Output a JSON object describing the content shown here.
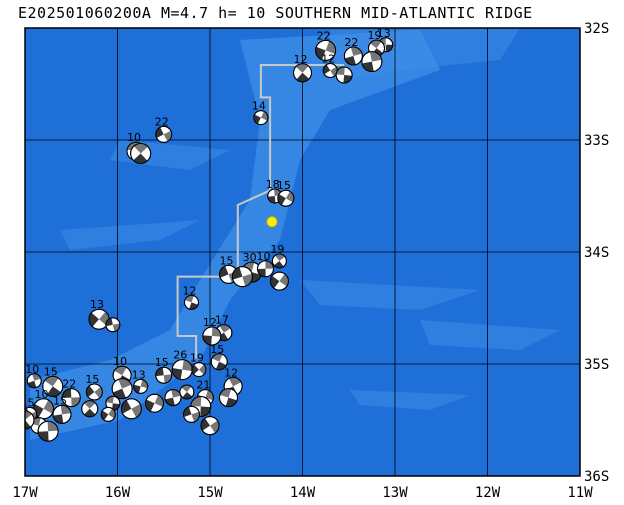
{
  "title": "E202501060200A  M=4.7  h= 10 SOUTHERN MID-ATLANTIC RIDGE",
  "lon_labels": [
    "17W",
    "16W",
    "15W",
    "14W",
    "13W",
    "12W",
    "11W"
  ],
  "lat_labels": [
    "32S",
    "33S",
    "34S",
    "35S",
    "36S"
  ],
  "extent": {
    "lon_min": -17,
    "lon_max": -11,
    "lat_min": -36,
    "lat_max": -32
  },
  "colors": {
    "ocean": "#1f6fd8",
    "shallow": "#3f8fe8",
    "ridge_line": "#c8c8c8",
    "event": "#ffee00"
  },
  "event": {
    "lon": -14.33,
    "lat": -33.73
  },
  "ridge": [
    {
      "lon": -13.55,
      "lat": -32.33
    },
    {
      "lon": -14.45,
      "lat": -32.33
    },
    {
      "lon": -14.45,
      "lat": -32.62
    },
    {
      "lon": -14.35,
      "lat": -32.62
    },
    {
      "lon": -14.35,
      "lat": -33.45
    },
    {
      "lon": -14.7,
      "lat": -33.58
    },
    {
      "lon": -14.7,
      "lat": -34.22
    },
    {
      "lon": -15.35,
      "lat": -34.22
    },
    {
      "lon": -15.35,
      "lat": -34.75
    },
    {
      "lon": -15.15,
      "lat": -34.75
    },
    {
      "lon": -15.15,
      "lat": -34.95
    }
  ],
  "mechanisms": [
    {
      "lon": -13.1,
      "lat": -32.15,
      "label": "13"
    },
    {
      "lon": -13.2,
      "lat": -32.18,
      "label": "19"
    },
    {
      "lon": -13.45,
      "lat": -32.25,
      "label": "22"
    },
    {
      "lon": -13.75,
      "lat": -32.2,
      "label": "22"
    },
    {
      "lon": -13.7,
      "lat": -32.38,
      "label": "12"
    },
    {
      "lon": -13.55,
      "lat": -32.42,
      "label": ""
    },
    {
      "lon": -14.0,
      "lat": -32.4,
      "label": "12"
    },
    {
      "lon": -13.25,
      "lat": -32.3,
      "label": ""
    },
    {
      "lon": -14.45,
      "lat": -32.8,
      "label": "14"
    },
    {
      "lon": -15.5,
      "lat": -32.95,
      "label": "22"
    },
    {
      "lon": -15.8,
      "lat": -33.1,
      "label": "10"
    },
    {
      "lon": -15.75,
      "lat": -33.12,
      "label": ""
    },
    {
      "lon": -14.3,
      "lat": -33.5,
      "label": "18"
    },
    {
      "lon": -14.18,
      "lat": -33.52,
      "label": "15"
    },
    {
      "lon": -14.8,
      "lat": -34.2,
      "label": "15"
    },
    {
      "lon": -14.55,
      "lat": -34.18,
      "label": "30"
    },
    {
      "lon": -14.25,
      "lat": -34.08,
      "label": "19"
    },
    {
      "lon": -14.4,
      "lat": -34.15,
      "label": "10"
    },
    {
      "lon": -14.25,
      "lat": -34.26,
      "label": ""
    },
    {
      "lon": -14.65,
      "lat": -34.22,
      "label": ""
    },
    {
      "lon": -15.2,
      "lat": -34.45,
      "label": "12"
    },
    {
      "lon": -14.85,
      "lat": -34.72,
      "label": "17"
    },
    {
      "lon": -14.98,
      "lat": -34.75,
      "label": "12"
    },
    {
      "lon": -16.2,
      "lat": -34.6,
      "label": "13"
    },
    {
      "lon": -16.05,
      "lat": -34.65,
      "label": ""
    },
    {
      "lon": -14.9,
      "lat": -34.98,
      "label": "15"
    },
    {
      "lon": -14.75,
      "lat": -35.2,
      "label": "12"
    },
    {
      "lon": -15.3,
      "lat": -35.05,
      "label": "26"
    },
    {
      "lon": -15.12,
      "lat": -35.05,
      "label": "19"
    },
    {
      "lon": -15.5,
      "lat": -35.1,
      "label": "15"
    },
    {
      "lon": -15.95,
      "lat": -35.1,
      "label": "10"
    },
    {
      "lon": -15.95,
      "lat": -35.22,
      "label": ""
    },
    {
      "lon": -15.75,
      "lat": -35.2,
      "label": "13"
    },
    {
      "lon": -16.25,
      "lat": -35.25,
      "label": "15"
    },
    {
      "lon": -16.5,
      "lat": -35.3,
      "label": "22"
    },
    {
      "lon": -16.7,
      "lat": -35.2,
      "label": "15"
    },
    {
      "lon": -16.9,
      "lat": -35.15,
      "label": "10"
    },
    {
      "lon": -15.05,
      "lat": -35.3,
      "label": "21"
    },
    {
      "lon": -15.0,
      "lat": -35.55,
      "label": ""
    },
    {
      "lon": -15.1,
      "lat": -35.38,
      "label": ""
    },
    {
      "lon": -15.25,
      "lat": -35.25,
      "label": ""
    },
    {
      "lon": -15.4,
      "lat": -35.3,
      "label": ""
    },
    {
      "lon": -15.6,
      "lat": -35.35,
      "label": ""
    },
    {
      "lon": -15.85,
      "lat": -35.4,
      "label": ""
    },
    {
      "lon": -16.05,
      "lat": -35.35,
      "label": ""
    },
    {
      "lon": -16.3,
      "lat": -35.4,
      "label": ""
    },
    {
      "lon": -16.6,
      "lat": -35.45,
      "label": "15"
    },
    {
      "lon": -16.8,
      "lat": -35.4,
      "label": "10"
    },
    {
      "lon": -16.95,
      "lat": -35.45,
      "label": "15"
    },
    {
      "lon": -16.85,
      "lat": -35.55,
      "label": ""
    },
    {
      "lon": -17.0,
      "lat": -35.5,
      "label": ""
    },
    {
      "lon": -16.75,
      "lat": -35.6,
      "label": ""
    },
    {
      "lon": -16.1,
      "lat": -35.45,
      "label": ""
    },
    {
      "lon": -15.2,
      "lat": -35.45,
      "label": ""
    },
    {
      "lon": -14.8,
      "lat": -35.3,
      "label": ""
    }
  ]
}
